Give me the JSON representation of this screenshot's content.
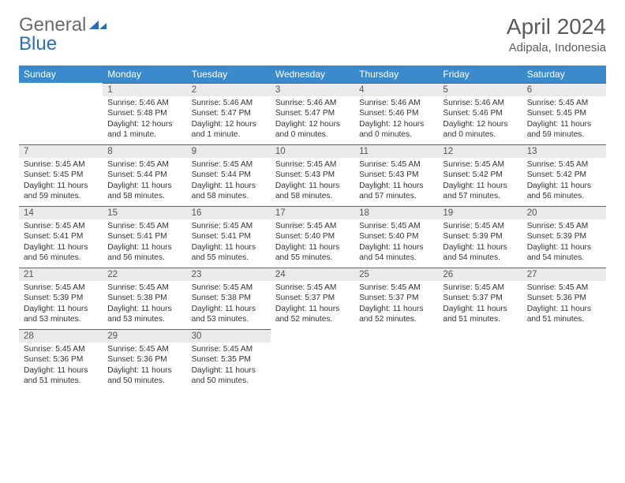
{
  "logo": {
    "part1": "General",
    "part2": "Blue"
  },
  "title": "April 2024",
  "location": "Adipala, Indonesia",
  "colors": {
    "header_bg": "#3b8bcc",
    "header_text": "#ffffff",
    "daynum_bg": "#eaeaea",
    "daynum_border": "#2a6fb5",
    "text": "#333333",
    "title_text": "#5a5a5a",
    "page_bg": "#ffffff"
  },
  "typography": {
    "title_fontsize": 28,
    "location_fontsize": 15,
    "header_fontsize": 12,
    "daynum_fontsize": 11.5,
    "cell_fontsize": 10.2
  },
  "weekdays": [
    "Sunday",
    "Monday",
    "Tuesday",
    "Wednesday",
    "Thursday",
    "Friday",
    "Saturday"
  ],
  "weeks": [
    [
      {
        "empty": true
      },
      {
        "d": "1",
        "sr": "Sunrise: 5:46 AM",
        "ss": "Sunset: 5:48 PM",
        "dl1": "Daylight: 12 hours",
        "dl2": "and 1 minute."
      },
      {
        "d": "2",
        "sr": "Sunrise: 5:46 AM",
        "ss": "Sunset: 5:47 PM",
        "dl1": "Daylight: 12 hours",
        "dl2": "and 1 minute."
      },
      {
        "d": "3",
        "sr": "Sunrise: 5:46 AM",
        "ss": "Sunset: 5:47 PM",
        "dl1": "Daylight: 12 hours",
        "dl2": "and 0 minutes."
      },
      {
        "d": "4",
        "sr": "Sunrise: 5:46 AM",
        "ss": "Sunset: 5:46 PM",
        "dl1": "Daylight: 12 hours",
        "dl2": "and 0 minutes."
      },
      {
        "d": "5",
        "sr": "Sunrise: 5:46 AM",
        "ss": "Sunset: 5:46 PM",
        "dl1": "Daylight: 12 hours",
        "dl2": "and 0 minutes."
      },
      {
        "d": "6",
        "sr": "Sunrise: 5:45 AM",
        "ss": "Sunset: 5:45 PM",
        "dl1": "Daylight: 11 hours",
        "dl2": "and 59 minutes."
      }
    ],
    [
      {
        "d": "7",
        "sr": "Sunrise: 5:45 AM",
        "ss": "Sunset: 5:45 PM",
        "dl1": "Daylight: 11 hours",
        "dl2": "and 59 minutes."
      },
      {
        "d": "8",
        "sr": "Sunrise: 5:45 AM",
        "ss": "Sunset: 5:44 PM",
        "dl1": "Daylight: 11 hours",
        "dl2": "and 58 minutes."
      },
      {
        "d": "9",
        "sr": "Sunrise: 5:45 AM",
        "ss": "Sunset: 5:44 PM",
        "dl1": "Daylight: 11 hours",
        "dl2": "and 58 minutes."
      },
      {
        "d": "10",
        "sr": "Sunrise: 5:45 AM",
        "ss": "Sunset: 5:43 PM",
        "dl1": "Daylight: 11 hours",
        "dl2": "and 58 minutes."
      },
      {
        "d": "11",
        "sr": "Sunrise: 5:45 AM",
        "ss": "Sunset: 5:43 PM",
        "dl1": "Daylight: 11 hours",
        "dl2": "and 57 minutes."
      },
      {
        "d": "12",
        "sr": "Sunrise: 5:45 AM",
        "ss": "Sunset: 5:42 PM",
        "dl1": "Daylight: 11 hours",
        "dl2": "and 57 minutes."
      },
      {
        "d": "13",
        "sr": "Sunrise: 5:45 AM",
        "ss": "Sunset: 5:42 PM",
        "dl1": "Daylight: 11 hours",
        "dl2": "and 56 minutes."
      }
    ],
    [
      {
        "d": "14",
        "sr": "Sunrise: 5:45 AM",
        "ss": "Sunset: 5:41 PM",
        "dl1": "Daylight: 11 hours",
        "dl2": "and 56 minutes."
      },
      {
        "d": "15",
        "sr": "Sunrise: 5:45 AM",
        "ss": "Sunset: 5:41 PM",
        "dl1": "Daylight: 11 hours",
        "dl2": "and 56 minutes."
      },
      {
        "d": "16",
        "sr": "Sunrise: 5:45 AM",
        "ss": "Sunset: 5:41 PM",
        "dl1": "Daylight: 11 hours",
        "dl2": "and 55 minutes."
      },
      {
        "d": "17",
        "sr": "Sunrise: 5:45 AM",
        "ss": "Sunset: 5:40 PM",
        "dl1": "Daylight: 11 hours",
        "dl2": "and 55 minutes."
      },
      {
        "d": "18",
        "sr": "Sunrise: 5:45 AM",
        "ss": "Sunset: 5:40 PM",
        "dl1": "Daylight: 11 hours",
        "dl2": "and 54 minutes."
      },
      {
        "d": "19",
        "sr": "Sunrise: 5:45 AM",
        "ss": "Sunset: 5:39 PM",
        "dl1": "Daylight: 11 hours",
        "dl2": "and 54 minutes."
      },
      {
        "d": "20",
        "sr": "Sunrise: 5:45 AM",
        "ss": "Sunset: 5:39 PM",
        "dl1": "Daylight: 11 hours",
        "dl2": "and 54 minutes."
      }
    ],
    [
      {
        "d": "21",
        "sr": "Sunrise: 5:45 AM",
        "ss": "Sunset: 5:39 PM",
        "dl1": "Daylight: 11 hours",
        "dl2": "and 53 minutes."
      },
      {
        "d": "22",
        "sr": "Sunrise: 5:45 AM",
        "ss": "Sunset: 5:38 PM",
        "dl1": "Daylight: 11 hours",
        "dl2": "and 53 minutes."
      },
      {
        "d": "23",
        "sr": "Sunrise: 5:45 AM",
        "ss": "Sunset: 5:38 PM",
        "dl1": "Daylight: 11 hours",
        "dl2": "and 53 minutes."
      },
      {
        "d": "24",
        "sr": "Sunrise: 5:45 AM",
        "ss": "Sunset: 5:37 PM",
        "dl1": "Daylight: 11 hours",
        "dl2": "and 52 minutes."
      },
      {
        "d": "25",
        "sr": "Sunrise: 5:45 AM",
        "ss": "Sunset: 5:37 PM",
        "dl1": "Daylight: 11 hours",
        "dl2": "and 52 minutes."
      },
      {
        "d": "26",
        "sr": "Sunrise: 5:45 AM",
        "ss": "Sunset: 5:37 PM",
        "dl1": "Daylight: 11 hours",
        "dl2": "and 51 minutes."
      },
      {
        "d": "27",
        "sr": "Sunrise: 5:45 AM",
        "ss": "Sunset: 5:36 PM",
        "dl1": "Daylight: 11 hours",
        "dl2": "and 51 minutes."
      }
    ],
    [
      {
        "d": "28",
        "sr": "Sunrise: 5:45 AM",
        "ss": "Sunset: 5:36 PM",
        "dl1": "Daylight: 11 hours",
        "dl2": "and 51 minutes."
      },
      {
        "d": "29",
        "sr": "Sunrise: 5:45 AM",
        "ss": "Sunset: 5:36 PM",
        "dl1": "Daylight: 11 hours",
        "dl2": "and 50 minutes."
      },
      {
        "d": "30",
        "sr": "Sunrise: 5:45 AM",
        "ss": "Sunset: 5:35 PM",
        "dl1": "Daylight: 11 hours",
        "dl2": "and 50 minutes."
      },
      {
        "empty": true
      },
      {
        "empty": true
      },
      {
        "empty": true
      },
      {
        "empty": true
      }
    ]
  ]
}
